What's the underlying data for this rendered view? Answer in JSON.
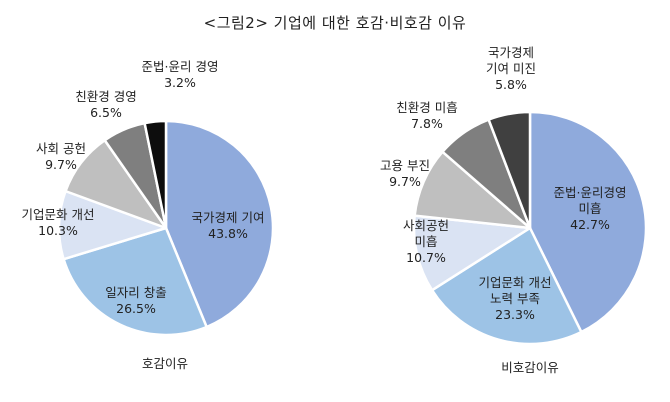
{
  "title": "<그림2> 기업에 대한 호감·비호감 이유",
  "chart_data": [
    {
      "type": "pie",
      "caption": "호감이유",
      "slices": [
        {
          "label": [
            "국가경제 기여"
          ],
          "value": 43.8,
          "display": "43.8%",
          "color": "#8faadc"
        },
        {
          "label": [
            "일자리 창출"
          ],
          "value": 26.5,
          "display": "26.5%",
          "color": "#9dc3e6"
        },
        {
          "label": [
            "기업문화 개선"
          ],
          "value": 10.3,
          "display": "10.3%",
          "color": "#dae3f3"
        },
        {
          "label": [
            "사회 공헌"
          ],
          "value": 9.7,
          "display": "9.7%",
          "color": "#bfbfbf"
        },
        {
          "label": [
            "친환경 경영"
          ],
          "value": 6.5,
          "display": "6.5%",
          "color": "#7f7f7f"
        },
        {
          "label": [
            "준법·윤리 경영"
          ],
          "value": 3.2,
          "display": "3.2%",
          "color": "#0d0d0d"
        }
      ]
    },
    {
      "type": "pie",
      "caption": "비호감이유",
      "slices": [
        {
          "label": [
            "준법·윤리경영",
            "미흡"
          ],
          "value": 42.7,
          "display": "42.7%",
          "color": "#8faadc"
        },
        {
          "label": [
            "기업문화 개선",
            "노력 부족"
          ],
          "value": 23.3,
          "display": "23.3%",
          "color": "#9dc3e6"
        },
        {
          "label": [
            "사회공헌",
            "미흡"
          ],
          "value": 10.7,
          "display": "10.7%",
          "color": "#dae3f3"
        },
        {
          "label": [
            "고용 부진"
          ],
          "value": 9.7,
          "display": "9.7%",
          "color": "#bfbfbf"
        },
        {
          "label": [
            "친환경 미흡"
          ],
          "value": 7.8,
          "display": "7.8%",
          "color": "#7f7f7f"
        },
        {
          "label": [
            "국가경제",
            "기여 미진"
          ],
          "value": 5.8,
          "display": "5.8%",
          "color": "#404040"
        }
      ]
    }
  ]
}
